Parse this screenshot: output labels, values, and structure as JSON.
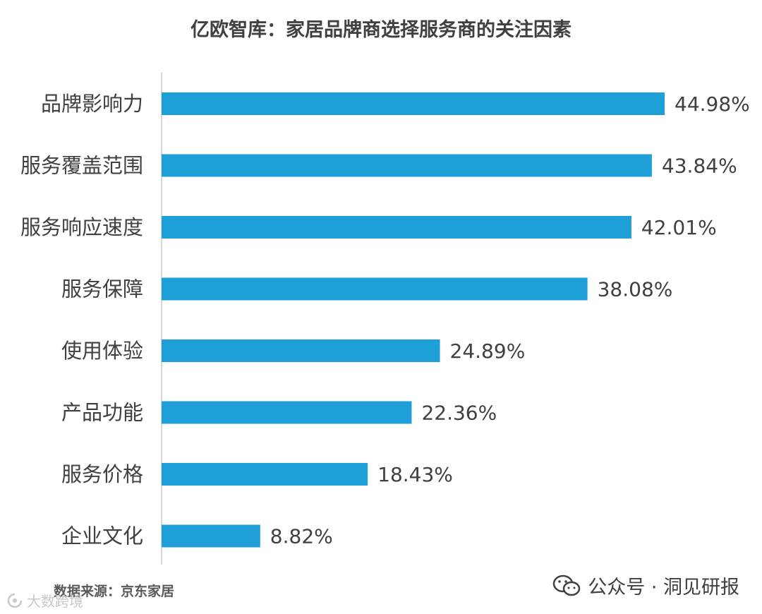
{
  "title": "亿欧智库：家居品牌商选择服务商的关注因素",
  "source": "数据来源：京东家居",
  "watermark_right": "公众号 · 洞见研报",
  "watermark_left": "大数跨境",
  "colors": {
    "bar": "#1f9fd8",
    "axis": "#d9d9d9",
    "text": "#404040"
  },
  "icons": {
    "right": "wechat-icon",
    "left": "logo-icon"
  },
  "chart_data": {
    "type": "bar",
    "orientation": "horizontal",
    "categories": [
      "品牌影响力",
      "服务覆盖范围",
      "服务响应速度",
      "服务保障",
      "使用体验",
      "产品功能",
      "服务价格",
      "企业文化"
    ],
    "values": [
      44.98,
      43.84,
      42.01,
      38.08,
      24.89,
      22.36,
      18.43,
      8.82
    ],
    "value_labels": [
      "44.98%",
      "43.84%",
      "42.01%",
      "38.08%",
      "24.89%",
      "22.36%",
      "18.43%",
      "8.82%"
    ],
    "xlim": [
      0,
      45
    ],
    "grid": false,
    "legend": "none"
  }
}
